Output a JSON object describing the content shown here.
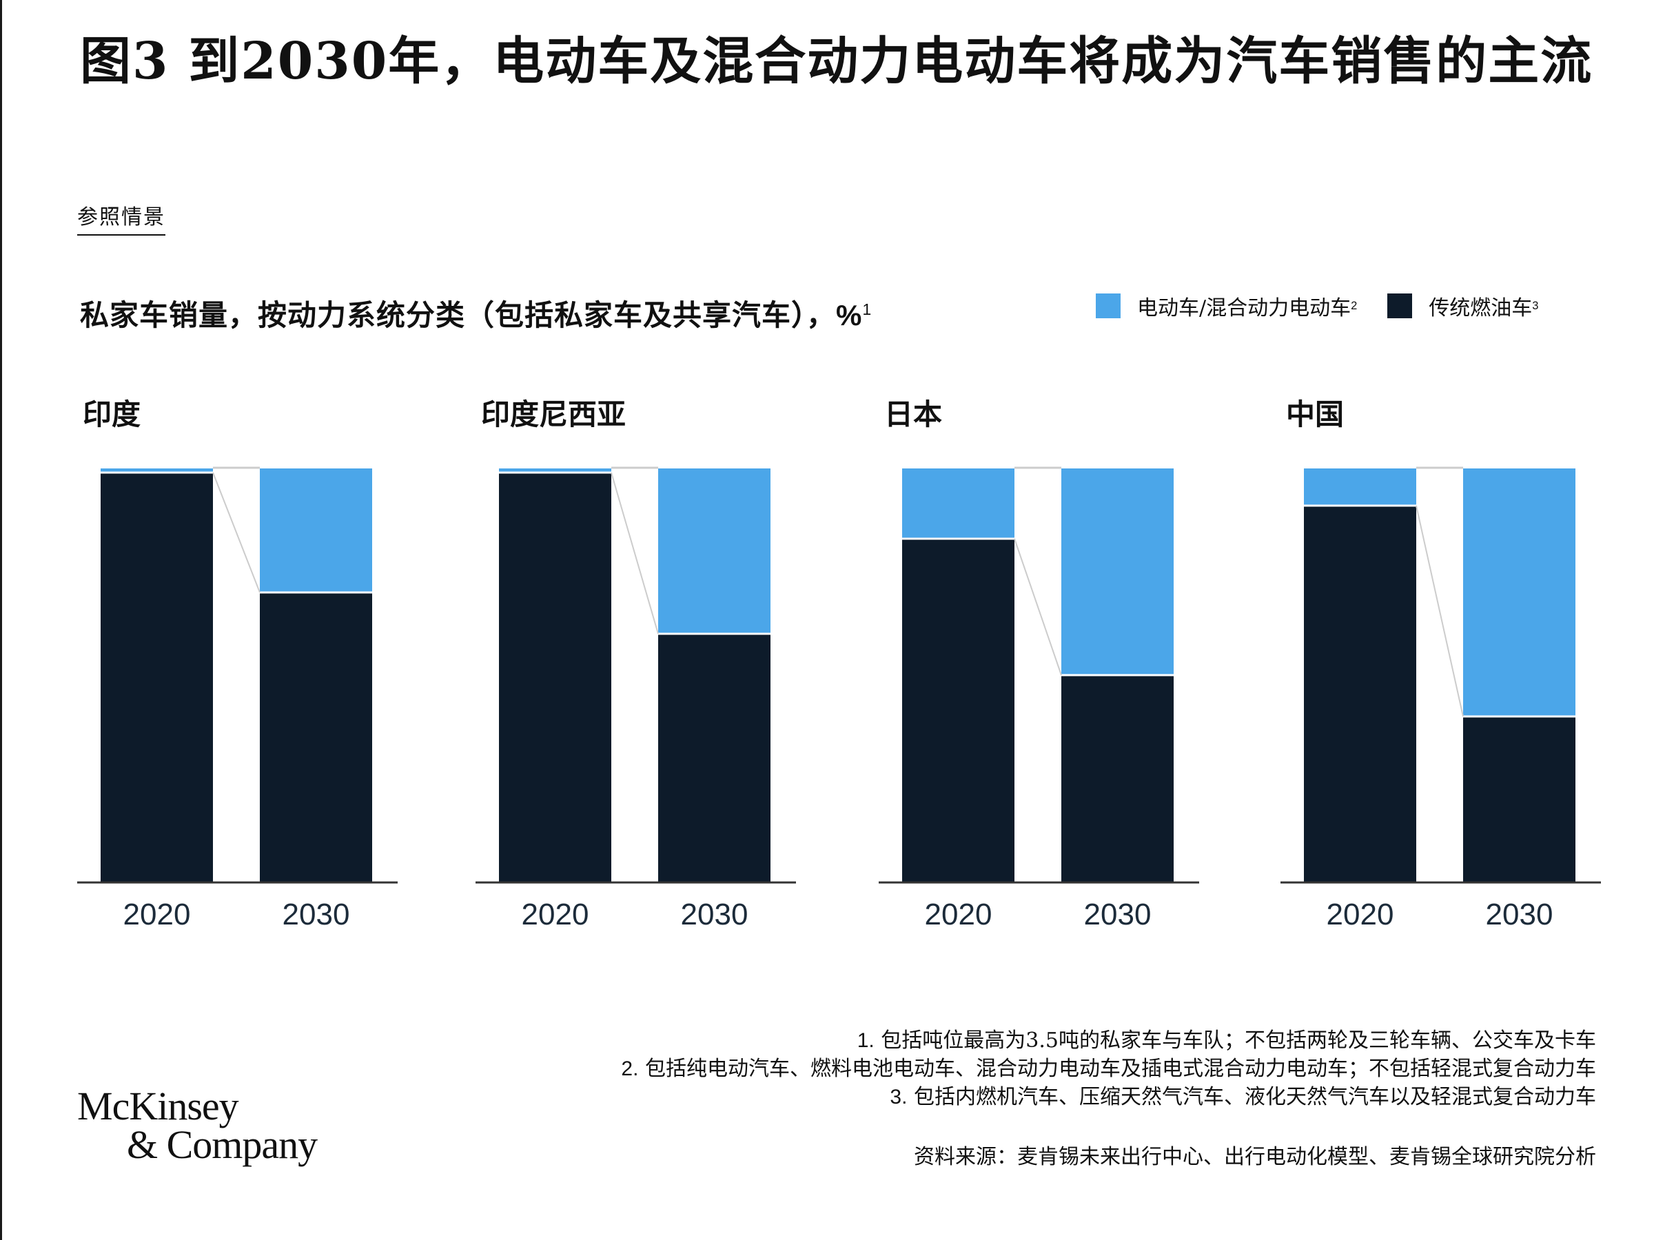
{
  "title": "图3 到2030年，电动车及混合动力电动车将成为汽车销售的主流",
  "scenario": "参照情景",
  "subtitle": "私家车销量，按动力系统分类（包括私家车及共享汽车）",
  "subtitle_unit": "，%",
  "subtitle_sup": "1",
  "legend": [
    {
      "label": "电动车/混合动力电动车",
      "sup": "2",
      "color": "#4ba6e9"
    },
    {
      "label": "传统燃油车",
      "sup": "3",
      "color": "#0d1b2a"
    }
  ],
  "colors": {
    "ev": "#4ba6e9",
    "ice": "#0d1b2a",
    "connector": "#cccccc",
    "baseline": "#333333"
  },
  "chart_data": [
    {
      "type": "bar",
      "stacked": true,
      "title": "印度",
      "categories": [
        "2020",
        "2030"
      ],
      "ylim": [
        0,
        100
      ],
      "series": [
        {
          "name": "电动车/混合动力电动车",
          "values": [
            1,
            30
          ]
        },
        {
          "name": "传统燃油车",
          "values": [
            99,
            70
          ]
        }
      ]
    },
    {
      "type": "bar",
      "stacked": true,
      "title": "印度尼西亚",
      "categories": [
        "2020",
        "2030"
      ],
      "ylim": [
        0,
        100
      ],
      "series": [
        {
          "name": "电动车/混合动力电动车",
          "values": [
            1,
            40
          ]
        },
        {
          "name": "传统燃油车",
          "values": [
            99,
            60
          ]
        }
      ]
    },
    {
      "type": "bar",
      "stacked": true,
      "title": "日本",
      "categories": [
        "2020",
        "2030"
      ],
      "ylim": [
        0,
        100
      ],
      "series": [
        {
          "name": "电动车/混合动力电动车",
          "values": [
            17,
            50
          ]
        },
        {
          "name": "传统燃油车",
          "values": [
            83,
            50
          ]
        }
      ]
    },
    {
      "type": "bar",
      "stacked": true,
      "title": "中国",
      "categories": [
        "2020",
        "2030"
      ],
      "ylim": [
        0,
        100
      ],
      "series": [
        {
          "name": "电动车/混合动力电动车",
          "values": [
            9,
            60
          ]
        },
        {
          "name": "传统燃油车",
          "values": [
            91,
            40
          ]
        }
      ]
    }
  ],
  "footnotes": [
    {
      "num": "1.",
      "text": "包括吨位最高为3.5吨的私家车与车队；不包括两轮及三轮车辆、公交车及卡车"
    },
    {
      "num": "2.",
      "text": "包括纯电动汽车、燃料电池电动车、混合动力电动车及插电式混合动力电动车；不包括轻混式复合动力车"
    },
    {
      "num": "3.",
      "text": "包括内燃机汽车、压缩天然气汽车、液化天然气汽车以及轻混式复合动力车"
    }
  ],
  "source": "资料来源：麦肯锡未来出行中心、出行电动化模型、麦肯锡全球研究院分析",
  "logo": {
    "line1": "McKinsey",
    "line2": "& Company"
  }
}
